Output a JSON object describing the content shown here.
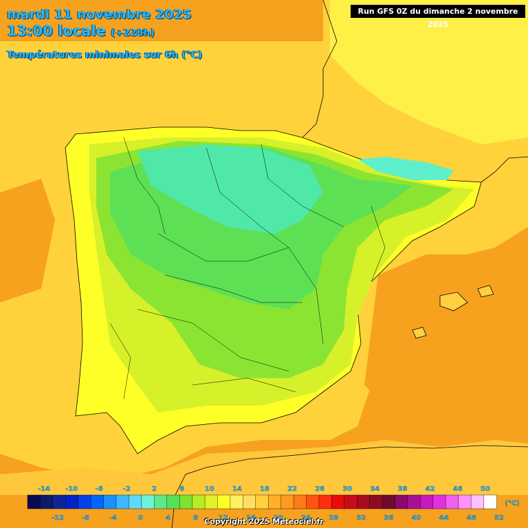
{
  "header": {
    "date": "mardi 11 novembre 2025",
    "time": "13:00 locale",
    "offset": "(+228h)",
    "parameter": "Températures minimales sur 6h (°C)"
  },
  "run_label": "Run GFS 0Z du dimanche 2 novembre 2025",
  "copyright": "Copyright 2025 Meteociel.fr",
  "legend": {
    "unit": "(°C)",
    "top_labels": [
      "-14",
      "-10",
      "-6",
      "-2",
      "2",
      "6",
      "10",
      "14",
      "18",
      "22",
      "26",
      "30",
      "34",
      "38",
      "42",
      "46",
      "50"
    ],
    "bottom_labels": [
      "-12",
      "-8",
      "-4",
      "0",
      "4",
      "8",
      "12",
      "16",
      "20",
      "24",
      "28",
      "32",
      "36",
      "40",
      "44",
      "48",
      "52"
    ],
    "colors": [
      "#0a0a50",
      "#0b1c6e",
      "#10249a",
      "#0022c8",
      "#0040e8",
      "#0066ff",
      "#1a90ff",
      "#3fb8ff",
      "#5ed8ff",
      "#6ef2d8",
      "#5fe88a",
      "#57e056",
      "#7ee234",
      "#b4ec28",
      "#e0f22c",
      "#ffff28",
      "#fff060",
      "#ffe060",
      "#ffd040",
      "#ffb028",
      "#ff9a20",
      "#ff7a18",
      "#ff5410",
      "#ff2e10",
      "#e80c0c",
      "#c80c1c",
      "#a80a20",
      "#8c0c24",
      "#700a2e",
      "#8a0a6e",
      "#a8109a",
      "#c818c0",
      "#e030e0",
      "#f060f0",
      "#ff90ff",
      "#ffc0ff",
      "#ffffff"
    ]
  },
  "map_colors": {
    "sea_warm": "#f6a21e",
    "sea_mild": "#ffd23c",
    "sea_cool": "#fff048",
    "land_yellow": "#ffff28",
    "land_yellowgreen": "#d6f02a",
    "land_green": "#8ce432",
    "land_bright_green": "#5ee055",
    "land_cyan": "#5ef0cc",
    "land_teal": "#4fe8a8",
    "north_africa": "#ffc83c"
  }
}
